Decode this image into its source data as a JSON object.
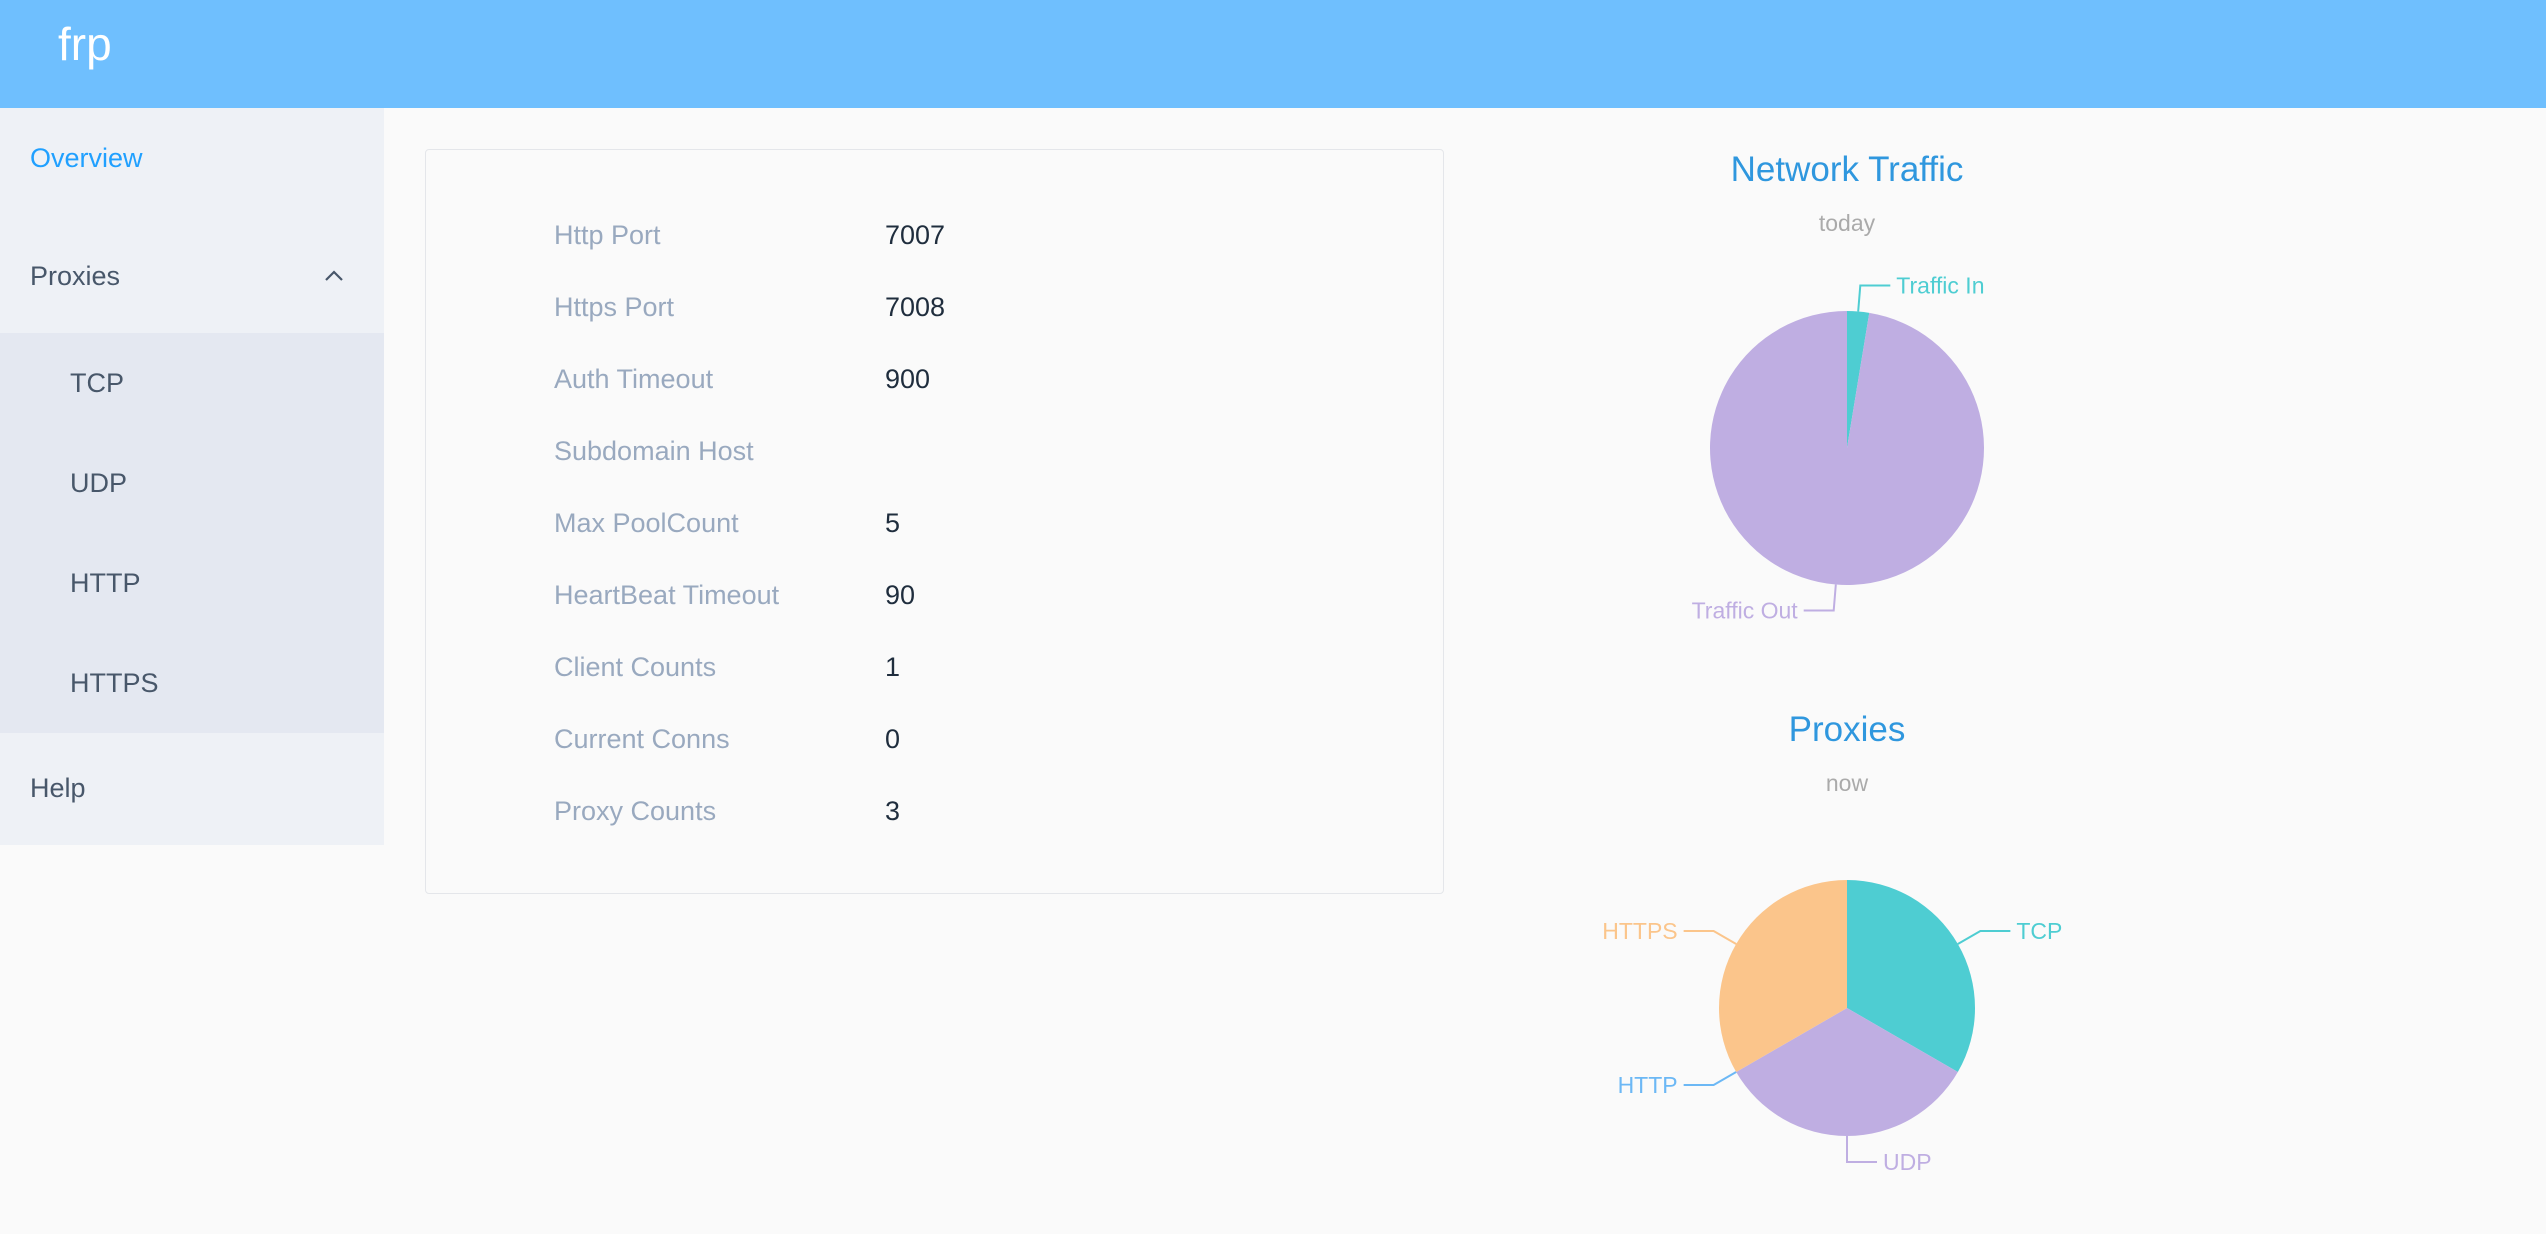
{
  "header": {
    "title": "frp"
  },
  "sidebar": {
    "overview": "Overview",
    "proxies": "Proxies",
    "proxy_items": [
      "TCP",
      "UDP",
      "HTTP",
      "HTTPS"
    ],
    "help": "Help",
    "active": "Overview",
    "active_color": "#20a0ff"
  },
  "server_info": [
    {
      "label": "Http Port",
      "value": "7007"
    },
    {
      "label": "Https Port",
      "value": "7008"
    },
    {
      "label": "Auth Timeout",
      "value": "900"
    },
    {
      "label": "Subdomain Host",
      "value": ""
    },
    {
      "label": "Max PoolCount",
      "value": "5"
    },
    {
      "label": "HeartBeat Timeout",
      "value": "90"
    },
    {
      "label": "Client Counts",
      "value": "1"
    },
    {
      "label": "Current Conns",
      "value": "0"
    },
    {
      "label": "Proxy Counts",
      "value": "3"
    }
  ],
  "chart_data": [
    {
      "type": "pie",
      "title": "Network Traffic",
      "subtitle": "today",
      "slices": [
        {
          "name": "Traffic In",
          "value": 2.6,
          "color": "#4ecdd2"
        },
        {
          "name": "Traffic Out",
          "value": 97.4,
          "color": "#bfaee2"
        }
      ]
    },
    {
      "type": "pie",
      "title": "Proxies",
      "subtitle": "now",
      "slices": [
        {
          "name": "TCP",
          "value": 1,
          "color": "#4ecdd2"
        },
        {
          "name": "UDP",
          "value": 1,
          "color": "#bfaee2"
        },
        {
          "name": "HTTP",
          "value": 0,
          "color": "#6cb8f5"
        },
        {
          "name": "HTTPS",
          "value": 1,
          "color": "#fbc58b"
        }
      ]
    }
  ]
}
